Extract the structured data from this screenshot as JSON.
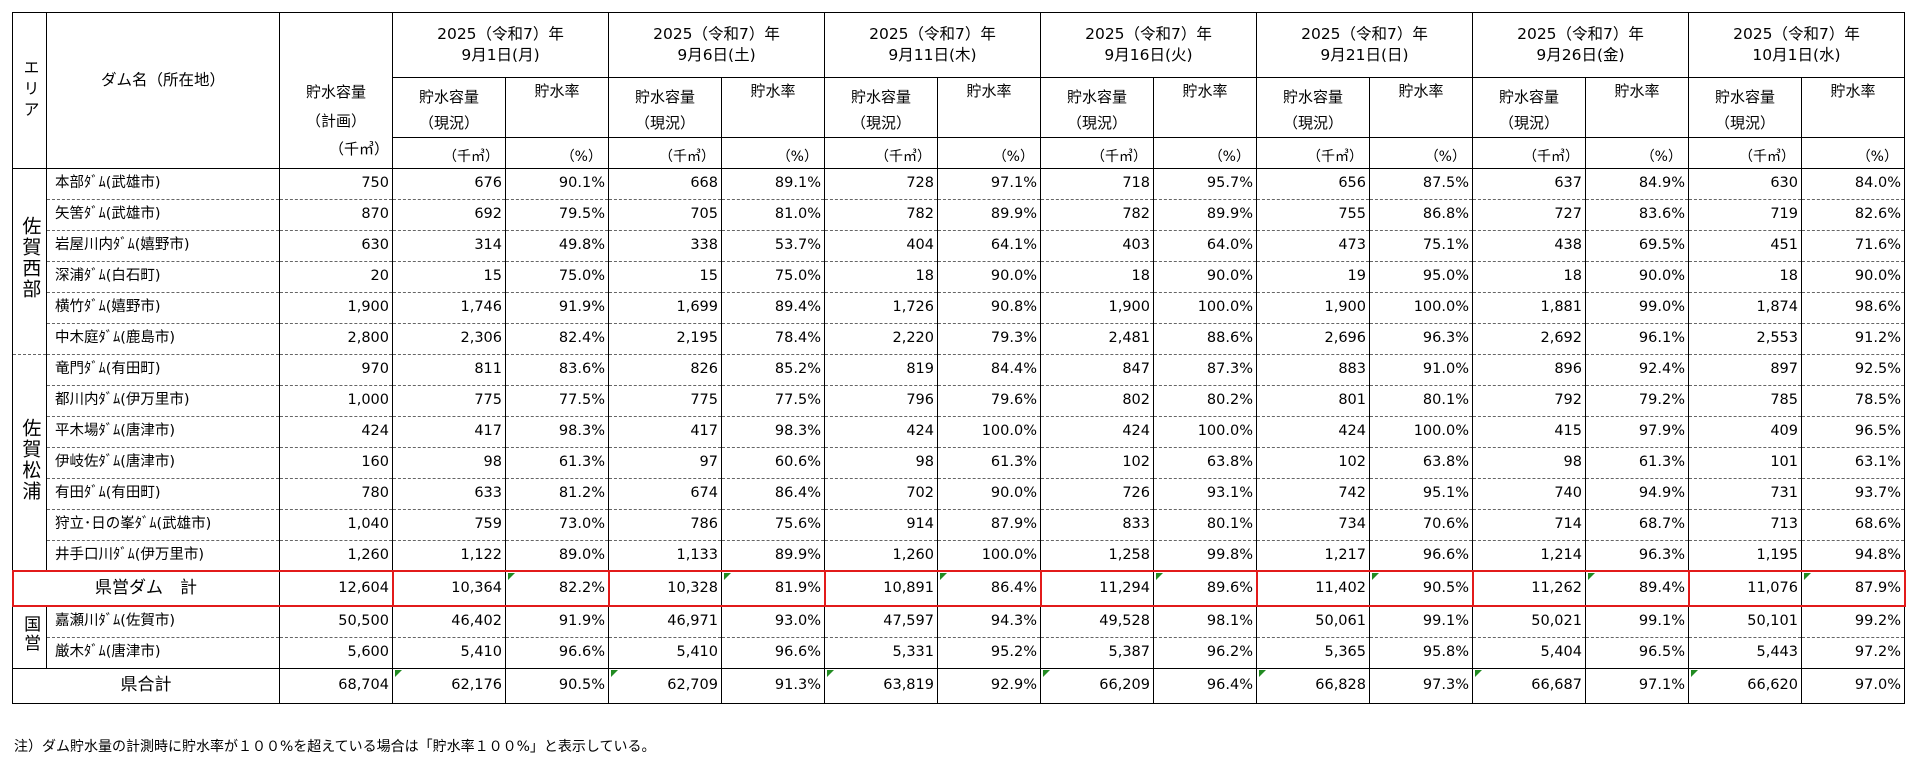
{
  "header": {
    "area_label": "エリア",
    "dam_name_label": "ダム名（所在地）",
    "plan_capacity_label": "貯水容量\n（計画）",
    "current_capacity_label": "貯水容量\n（現況）",
    "rate_label": "貯水率",
    "unit_volume": "（千㎥）",
    "unit_percent": "（%）",
    "dates": [
      {
        "year": "2025（令和7）年",
        "day": "9月1日(月)"
      },
      {
        "year": "2025（令和7）年",
        "day": "9月6日(土)"
      },
      {
        "year": "2025（令和7）年",
        "day": "9月11日(木)"
      },
      {
        "year": "2025（令和7）年",
        "day": "9月16日(火)"
      },
      {
        "year": "2025（令和7）年",
        "day": "9月21日(日)"
      },
      {
        "year": "2025（令和7）年",
        "day": "9月26日(金)"
      },
      {
        "year": "2025（令和7）年",
        "day": "10月1日(水)"
      }
    ]
  },
  "areas": [
    {
      "name": "佐賀西部",
      "dams": [
        {
          "name": "本部ﾀﾞﾑ(武雄市)",
          "plan": "750",
          "values": [
            [
              "676",
              "90.1%"
            ],
            [
              "668",
              "89.1%"
            ],
            [
              "728",
              "97.1%"
            ],
            [
              "718",
              "95.7%"
            ],
            [
              "656",
              "87.5%"
            ],
            [
              "637",
              "84.9%"
            ],
            [
              "630",
              "84.0%"
            ]
          ]
        },
        {
          "name": "矢筈ﾀﾞﾑ(武雄市)",
          "plan": "870",
          "values": [
            [
              "692",
              "79.5%"
            ],
            [
              "705",
              "81.0%"
            ],
            [
              "782",
              "89.9%"
            ],
            [
              "782",
              "89.9%"
            ],
            [
              "755",
              "86.8%"
            ],
            [
              "727",
              "83.6%"
            ],
            [
              "719",
              "82.6%"
            ]
          ]
        },
        {
          "name": "岩屋川内ﾀﾞﾑ(嬉野市)",
          "plan": "630",
          "values": [
            [
              "314",
              "49.8%"
            ],
            [
              "338",
              "53.7%"
            ],
            [
              "404",
              "64.1%"
            ],
            [
              "403",
              "64.0%"
            ],
            [
              "473",
              "75.1%"
            ],
            [
              "438",
              "69.5%"
            ],
            [
              "451",
              "71.6%"
            ]
          ]
        },
        {
          "name": "深浦ﾀﾞﾑ(白石町)",
          "plan": "20",
          "values": [
            [
              "15",
              "75.0%"
            ],
            [
              "15",
              "75.0%"
            ],
            [
              "18",
              "90.0%"
            ],
            [
              "18",
              "90.0%"
            ],
            [
              "19",
              "95.0%"
            ],
            [
              "18",
              "90.0%"
            ],
            [
              "18",
              "90.0%"
            ]
          ]
        },
        {
          "name": "横竹ﾀﾞﾑ(嬉野市)",
          "plan": "1,900",
          "values": [
            [
              "1,746",
              "91.9%"
            ],
            [
              "1,699",
              "89.4%"
            ],
            [
              "1,726",
              "90.8%"
            ],
            [
              "1,900",
              "100.0%"
            ],
            [
              "1,900",
              "100.0%"
            ],
            [
              "1,881",
              "99.0%"
            ],
            [
              "1,874",
              "98.6%"
            ]
          ]
        },
        {
          "name": "中木庭ﾀﾞﾑ(鹿島市)",
          "plan": "2,800",
          "values": [
            [
              "2,306",
              "82.4%"
            ],
            [
              "2,195",
              "78.4%"
            ],
            [
              "2,220",
              "79.3%"
            ],
            [
              "2,481",
              "88.6%"
            ],
            [
              "2,696",
              "96.3%"
            ],
            [
              "2,692",
              "96.1%"
            ],
            [
              "2,553",
              "91.2%"
            ]
          ]
        }
      ]
    },
    {
      "name": "佐賀松浦",
      "dams": [
        {
          "name": "竜門ﾀﾞﾑ(有田町)",
          "plan": "970",
          "values": [
            [
              "811",
              "83.6%"
            ],
            [
              "826",
              "85.2%"
            ],
            [
              "819",
              "84.4%"
            ],
            [
              "847",
              "87.3%"
            ],
            [
              "883",
              "91.0%"
            ],
            [
              "896",
              "92.4%"
            ],
            [
              "897",
              "92.5%"
            ]
          ]
        },
        {
          "name": "都川内ﾀﾞﾑ(伊万里市)",
          "plan": "1,000",
          "values": [
            [
              "775",
              "77.5%"
            ],
            [
              "775",
              "77.5%"
            ],
            [
              "796",
              "79.6%"
            ],
            [
              "802",
              "80.2%"
            ],
            [
              "801",
              "80.1%"
            ],
            [
              "792",
              "79.2%"
            ],
            [
              "785",
              "78.5%"
            ]
          ]
        },
        {
          "name": "平木場ﾀﾞﾑ(唐津市)",
          "plan": "424",
          "values": [
            [
              "417",
              "98.3%"
            ],
            [
              "417",
              "98.3%"
            ],
            [
              "424",
              "100.0%"
            ],
            [
              "424",
              "100.0%"
            ],
            [
              "424",
              "100.0%"
            ],
            [
              "415",
              "97.9%"
            ],
            [
              "409",
              "96.5%"
            ]
          ]
        },
        {
          "name": "伊岐佐ﾀﾞﾑ(唐津市)",
          "plan": "160",
          "values": [
            [
              "98",
              "61.3%"
            ],
            [
              "97",
              "60.6%"
            ],
            [
              "98",
              "61.3%"
            ],
            [
              "102",
              "63.8%"
            ],
            [
              "102",
              "63.8%"
            ],
            [
              "98",
              "61.3%"
            ],
            [
              "101",
              "63.1%"
            ]
          ]
        },
        {
          "name": "有田ﾀﾞﾑ(有田町)",
          "plan": "780",
          "values": [
            [
              "633",
              "81.2%"
            ],
            [
              "674",
              "86.4%"
            ],
            [
              "702",
              "90.0%"
            ],
            [
              "726",
              "93.1%"
            ],
            [
              "742",
              "95.1%"
            ],
            [
              "740",
              "94.9%"
            ],
            [
              "731",
              "93.7%"
            ]
          ]
        },
        {
          "name": "狩立･日の峯ﾀﾞﾑ(武雄市)",
          "plan": "1,040",
          "values": [
            [
              "759",
              "73.0%"
            ],
            [
              "786",
              "75.6%"
            ],
            [
              "914",
              "87.9%"
            ],
            [
              "833",
              "80.1%"
            ],
            [
              "734",
              "70.6%"
            ],
            [
              "714",
              "68.7%"
            ],
            [
              "713",
              "68.6%"
            ]
          ]
        },
        {
          "name": "井手口川ﾀﾞﾑ(伊万里市)",
          "plan": "1,260",
          "values": [
            [
              "1,122",
              "89.0%"
            ],
            [
              "1,133",
              "89.9%"
            ],
            [
              "1,260",
              "100.0%"
            ],
            [
              "1,258",
              "99.8%"
            ],
            [
              "1,217",
              "96.6%"
            ],
            [
              "1,214",
              "96.3%"
            ],
            [
              "1,195",
              "94.8%"
            ]
          ]
        }
      ]
    }
  ],
  "prefectural_total": {
    "name": "県営ダム　計",
    "plan": "12,604",
    "values": [
      [
        "10,364",
        "82.2%"
      ],
      [
        "10,328",
        "81.9%"
      ],
      [
        "10,891",
        "86.4%"
      ],
      [
        "11,294",
        "89.6%"
      ],
      [
        "11,402",
        "90.5%"
      ],
      [
        "11,262",
        "89.4%"
      ],
      [
        "11,076",
        "87.9%"
      ]
    ]
  },
  "national": {
    "name": "国営",
    "dams": [
      {
        "name": "嘉瀬川ﾀﾞﾑ(佐賀市)",
        "plan": "50,500",
        "values": [
          [
            "46,402",
            "91.9%"
          ],
          [
            "46,971",
            "93.0%"
          ],
          [
            "47,597",
            "94.3%"
          ],
          [
            "49,528",
            "98.1%"
          ],
          [
            "50,061",
            "99.1%"
          ],
          [
            "50,021",
            "99.1%"
          ],
          [
            "50,101",
            "99.2%"
          ]
        ]
      },
      {
        "name": "厳木ﾀﾞﾑ(唐津市)",
        "plan": "5,600",
        "values": [
          [
            "5,410",
            "96.6%"
          ],
          [
            "5,410",
            "96.6%"
          ],
          [
            "5,331",
            "95.2%"
          ],
          [
            "5,387",
            "96.2%"
          ],
          [
            "5,365",
            "95.8%"
          ],
          [
            "5,404",
            "96.5%"
          ],
          [
            "5,443",
            "97.2%"
          ]
        ]
      }
    ]
  },
  "grand_total": {
    "name": "県合計",
    "plan": "68,704",
    "values": [
      [
        "62,176",
        "90.5%"
      ],
      [
        "62,709",
        "91.3%"
      ],
      [
        "63,819",
        "92.9%"
      ],
      [
        "66,209",
        "96.4%"
      ],
      [
        "66,828",
        "97.3%"
      ],
      [
        "66,687",
        "97.1%"
      ],
      [
        "66,620",
        "97.0%"
      ]
    ]
  },
  "note": "注）ダム貯水量の計測時に貯水率が１００%を超えている場合は「貯水率１００%」と表示している。",
  "colors": {
    "highlight_border": "#e21b1b",
    "indicator": "#228b22"
  }
}
